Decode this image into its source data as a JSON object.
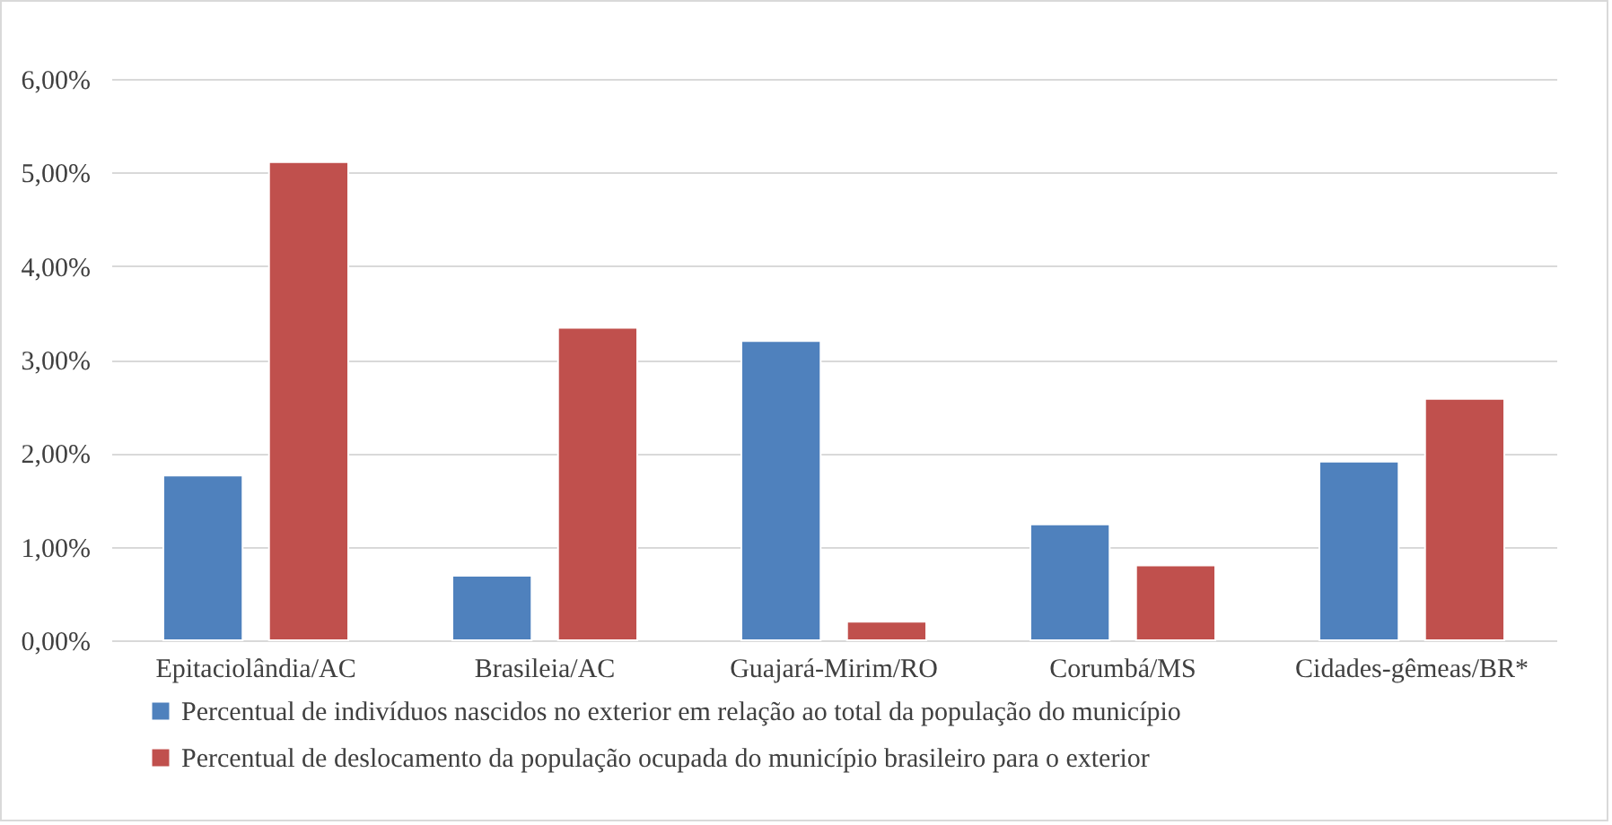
{
  "chart_data": {
    "type": "bar",
    "categories": [
      "Epitaciolândia/AC",
      "Brasileia/AC",
      "Guajará-Mirim/RO",
      "Corumbá/MS",
      "Cidades-gêmeas/BR*"
    ],
    "series": [
      {
        "name": "Percentual de indivíduos nascidos no exterior em relação ao total da população do município",
        "color": "#4f81bd",
        "values": [
          1.76,
          0.69,
          3.2,
          1.24,
          1.91
        ]
      },
      {
        "name": "Percentual de deslocamento da população ocupada do município brasileiro para o exterior",
        "color": "#c0504d",
        "values": [
          5.11,
          3.34,
          0.2,
          0.8,
          2.58
        ]
      }
    ],
    "ylim": [
      0,
      6
    ],
    "yticks": [
      {
        "value": 0,
        "label": "0,00%"
      },
      {
        "value": 1,
        "label": "1,00%"
      },
      {
        "value": 2,
        "label": "2,00%"
      },
      {
        "value": 3,
        "label": "3,00%"
      },
      {
        "value": 4,
        "label": "4,00%"
      },
      {
        "value": 5,
        "label": "5,00%"
      },
      {
        "value": 6,
        "label": "6,00%"
      }
    ],
    "grid": "y",
    "legend": "bottom"
  }
}
